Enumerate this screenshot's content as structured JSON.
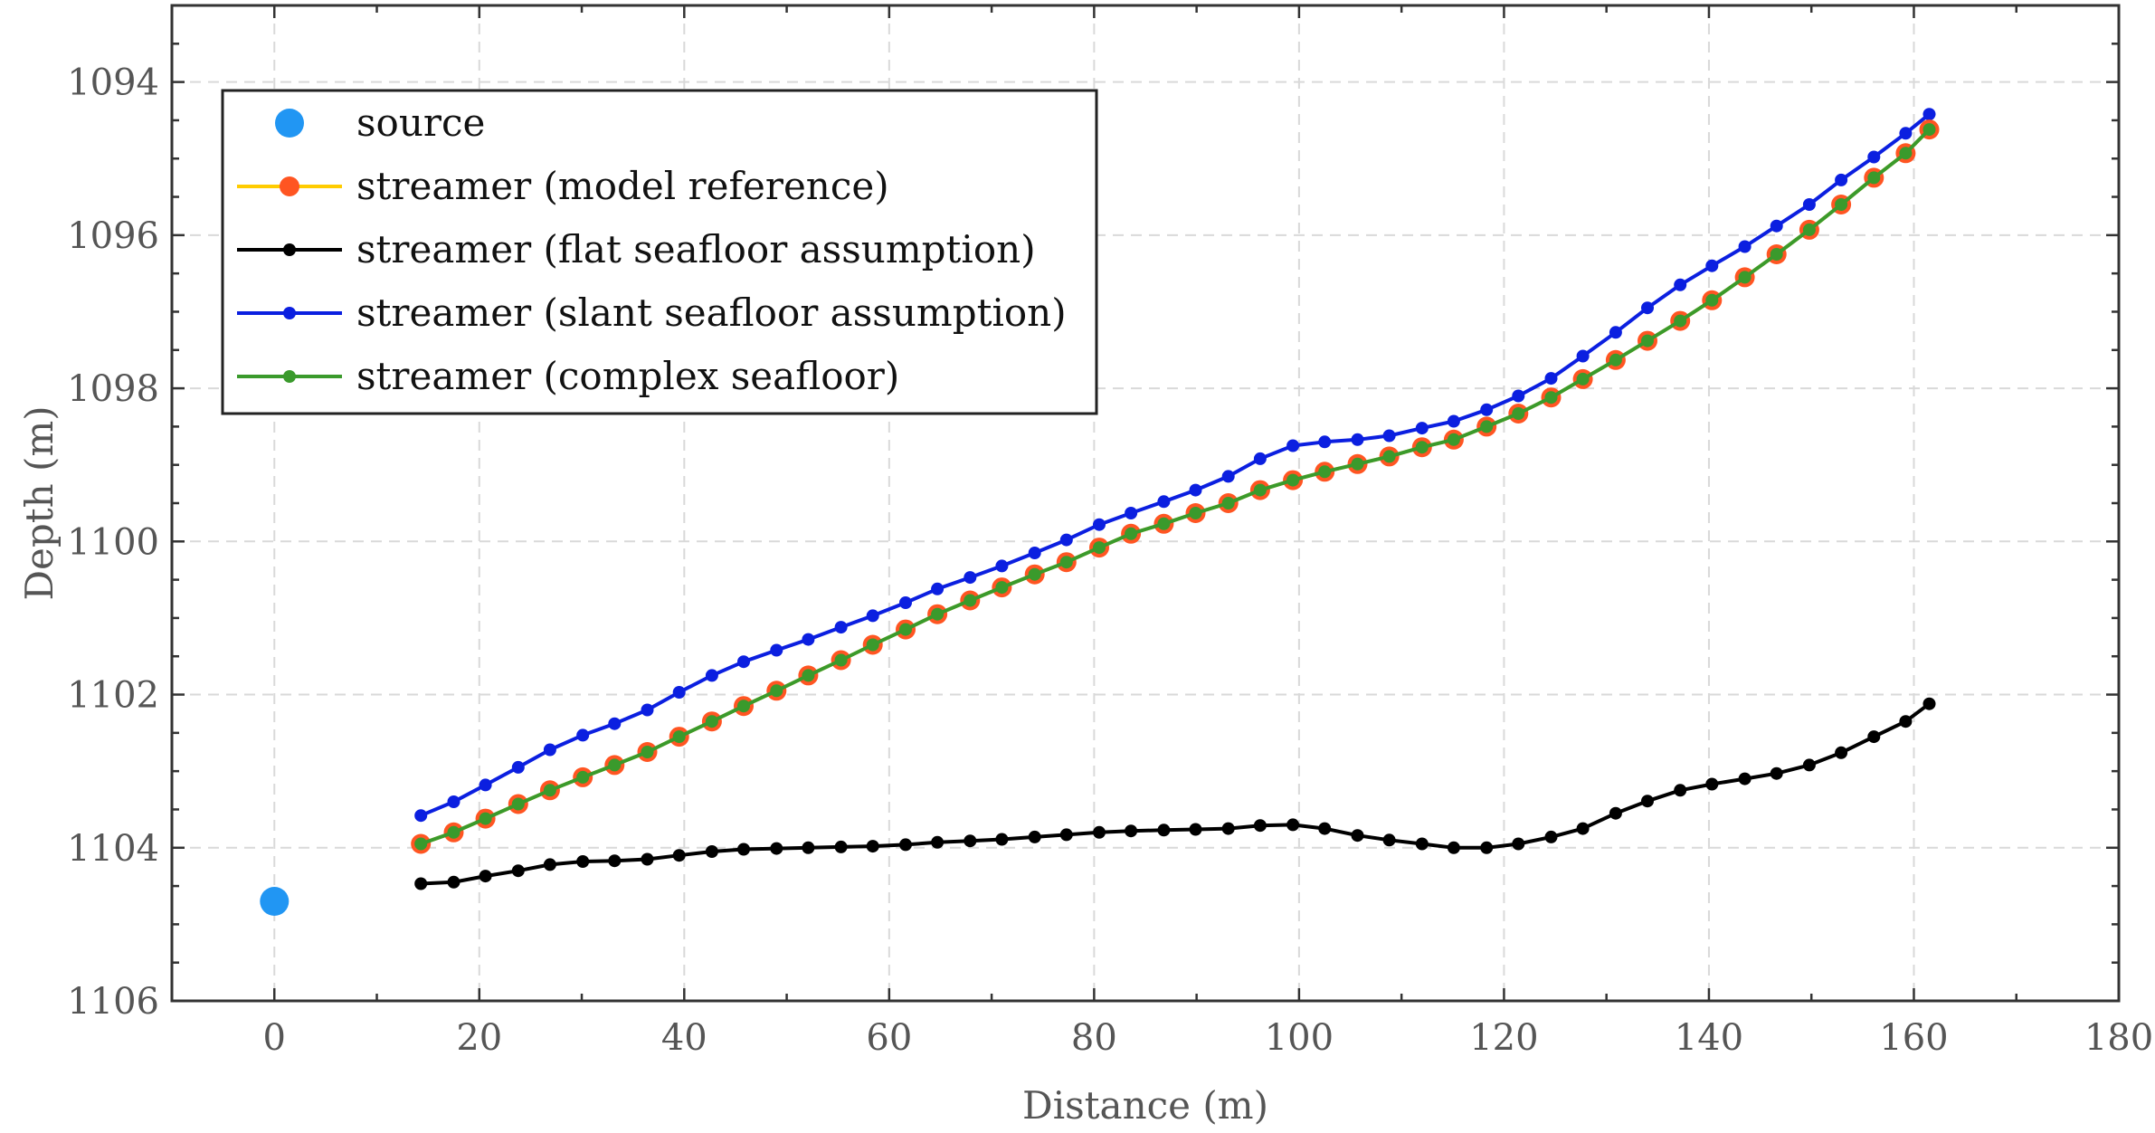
{
  "chart_data": {
    "type": "line",
    "title": "",
    "xlabel": "Distance (m)",
    "ylabel": "Depth (m)",
    "xlim": [
      -10,
      180
    ],
    "ylim": [
      1093,
      1106
    ],
    "y_reversed": true,
    "grid": true,
    "legend_position": "top-left",
    "xticks": [
      0,
      20,
      40,
      60,
      80,
      100,
      120,
      140,
      160,
      180
    ],
    "yticks": [
      1094,
      1096,
      1098,
      1100,
      1102,
      1104,
      1106
    ],
    "series": [
      {
        "name": "source",
        "color": "#2196f3",
        "marker": "large-dot",
        "line": false,
        "points": [
          [
            0,
            1104.7
          ]
        ]
      },
      {
        "name": "streamer (model reference)",
        "color": "#ffcc00",
        "marker_color": "#ff5522",
        "marker": "large-dot",
        "line": true,
        "x": [
          14.3,
          17.5,
          20.6,
          23.8,
          26.9,
          30.1,
          33.2,
          36.4,
          39.5,
          42.7,
          45.8,
          49.0,
          52.1,
          55.3,
          58.4,
          61.6,
          64.7,
          67.9,
          71.0,
          74.2,
          77.3,
          80.5,
          83.6,
          86.8,
          89.9,
          93.1,
          96.2,
          99.4,
          102.5,
          105.7,
          108.8,
          112.0,
          115.1,
          118.3,
          121.4,
          124.6,
          127.7,
          130.9,
          134.0,
          137.2,
          140.3,
          143.5,
          146.6,
          149.8,
          152.9,
          156.1,
          159.2,
          161.5
        ],
        "y": [
          1103.95,
          1103.8,
          1103.62,
          1103.43,
          1103.25,
          1103.08,
          1102.92,
          1102.75,
          1102.55,
          1102.35,
          1102.15,
          1101.95,
          1101.75,
          1101.55,
          1101.35,
          1101.15,
          1100.95,
          1100.77,
          1100.6,
          1100.43,
          1100.27,
          1100.08,
          1099.9,
          1099.77,
          1099.63,
          1099.5,
          1099.33,
          1099.2,
          1099.09,
          1098.99,
          1098.89,
          1098.77,
          1098.67,
          1098.5,
          1098.33,
          1098.12,
          1097.88,
          1097.63,
          1097.38,
          1097.12,
          1096.85,
          1096.55,
          1096.25,
          1095.93,
          1095.6,
          1095.25,
          1094.93,
          1094.62
        ]
      },
      {
        "name": "streamer (flat seafloor assumption)",
        "color": "#000000",
        "marker": "small-dot",
        "line": true,
        "x": [
          14.3,
          17.5,
          20.6,
          23.8,
          26.9,
          30.1,
          33.2,
          36.4,
          39.5,
          42.7,
          45.8,
          49.0,
          52.1,
          55.3,
          58.4,
          61.6,
          64.7,
          67.9,
          71.0,
          74.2,
          77.3,
          80.5,
          83.6,
          86.8,
          89.9,
          93.1,
          96.2,
          99.4,
          102.5,
          105.7,
          108.8,
          112.0,
          115.1,
          118.3,
          121.4,
          124.6,
          127.7,
          130.9,
          134.0,
          137.2,
          140.3,
          143.5,
          146.6,
          149.8,
          152.9,
          156.1,
          159.2,
          161.5
        ],
        "y": [
          1104.47,
          1104.45,
          1104.37,
          1104.3,
          1104.22,
          1104.18,
          1104.17,
          1104.15,
          1104.1,
          1104.05,
          1104.02,
          1104.01,
          1104.0,
          1103.99,
          1103.98,
          1103.96,
          1103.93,
          1103.91,
          1103.89,
          1103.86,
          1103.83,
          1103.8,
          1103.78,
          1103.77,
          1103.76,
          1103.75,
          1103.71,
          1103.7,
          1103.75,
          1103.84,
          1103.9,
          1103.95,
          1104.0,
          1104.0,
          1103.95,
          1103.86,
          1103.75,
          1103.55,
          1103.39,
          1103.25,
          1103.17,
          1103.1,
          1103.03,
          1102.92,
          1102.76,
          1102.55,
          1102.35,
          1102.12
        ]
      },
      {
        "name": "streamer (slant seafloor assumption)",
        "color": "#0b1fe0",
        "marker": "small-dot",
        "line": true,
        "x": [
          14.3,
          17.5,
          20.6,
          23.8,
          26.9,
          30.1,
          33.2,
          36.4,
          39.5,
          42.7,
          45.8,
          49.0,
          52.1,
          55.3,
          58.4,
          61.6,
          64.7,
          67.9,
          71.0,
          74.2,
          77.3,
          80.5,
          83.6,
          86.8,
          89.9,
          93.1,
          96.2,
          99.4,
          102.5,
          105.7,
          108.8,
          112.0,
          115.1,
          118.3,
          121.4,
          124.6,
          127.7,
          130.9,
          134.0,
          137.2,
          140.3,
          143.5,
          146.6,
          149.8,
          152.9,
          156.1,
          159.2,
          161.5
        ],
        "y": [
          1103.58,
          1103.4,
          1103.18,
          1102.95,
          1102.72,
          1102.53,
          1102.38,
          1102.2,
          1101.97,
          1101.75,
          1101.57,
          1101.42,
          1101.28,
          1101.12,
          1100.97,
          1100.8,
          1100.62,
          1100.47,
          1100.32,
          1100.15,
          1099.98,
          1099.78,
          1099.63,
          1099.48,
          1099.33,
          1099.15,
          1098.92,
          1098.75,
          1098.7,
          1098.67,
          1098.62,
          1098.52,
          1098.43,
          1098.28,
          1098.1,
          1097.87,
          1097.58,
          1097.27,
          1096.95,
          1096.65,
          1096.4,
          1096.15,
          1095.88,
          1095.6,
          1095.28,
          1094.98,
          1094.67,
          1094.42
        ]
      },
      {
        "name": "streamer (complex seafloor)",
        "color": "#3a9a2c",
        "marker": "small-dot",
        "line": true,
        "x": [
          14.3,
          17.5,
          20.6,
          23.8,
          26.9,
          30.1,
          33.2,
          36.4,
          39.5,
          42.7,
          45.8,
          49.0,
          52.1,
          55.3,
          58.4,
          61.6,
          64.7,
          67.9,
          71.0,
          74.2,
          77.3,
          80.5,
          83.6,
          86.8,
          89.9,
          93.1,
          96.2,
          99.4,
          102.5,
          105.7,
          108.8,
          112.0,
          115.1,
          118.3,
          121.4,
          124.6,
          127.7,
          130.9,
          134.0,
          137.2,
          140.3,
          143.5,
          146.6,
          149.8,
          152.9,
          156.1,
          159.2,
          161.5
        ],
        "y": [
          1103.95,
          1103.8,
          1103.62,
          1103.43,
          1103.25,
          1103.08,
          1102.92,
          1102.75,
          1102.55,
          1102.35,
          1102.15,
          1101.95,
          1101.75,
          1101.55,
          1101.35,
          1101.15,
          1100.95,
          1100.77,
          1100.6,
          1100.43,
          1100.27,
          1100.08,
          1099.9,
          1099.77,
          1099.63,
          1099.5,
          1099.33,
          1099.2,
          1099.09,
          1098.99,
          1098.89,
          1098.77,
          1098.67,
          1098.5,
          1098.33,
          1098.12,
          1097.88,
          1097.63,
          1097.38,
          1097.12,
          1096.85,
          1096.55,
          1096.25,
          1095.93,
          1095.6,
          1095.25,
          1094.93,
          1094.62
        ]
      }
    ]
  }
}
